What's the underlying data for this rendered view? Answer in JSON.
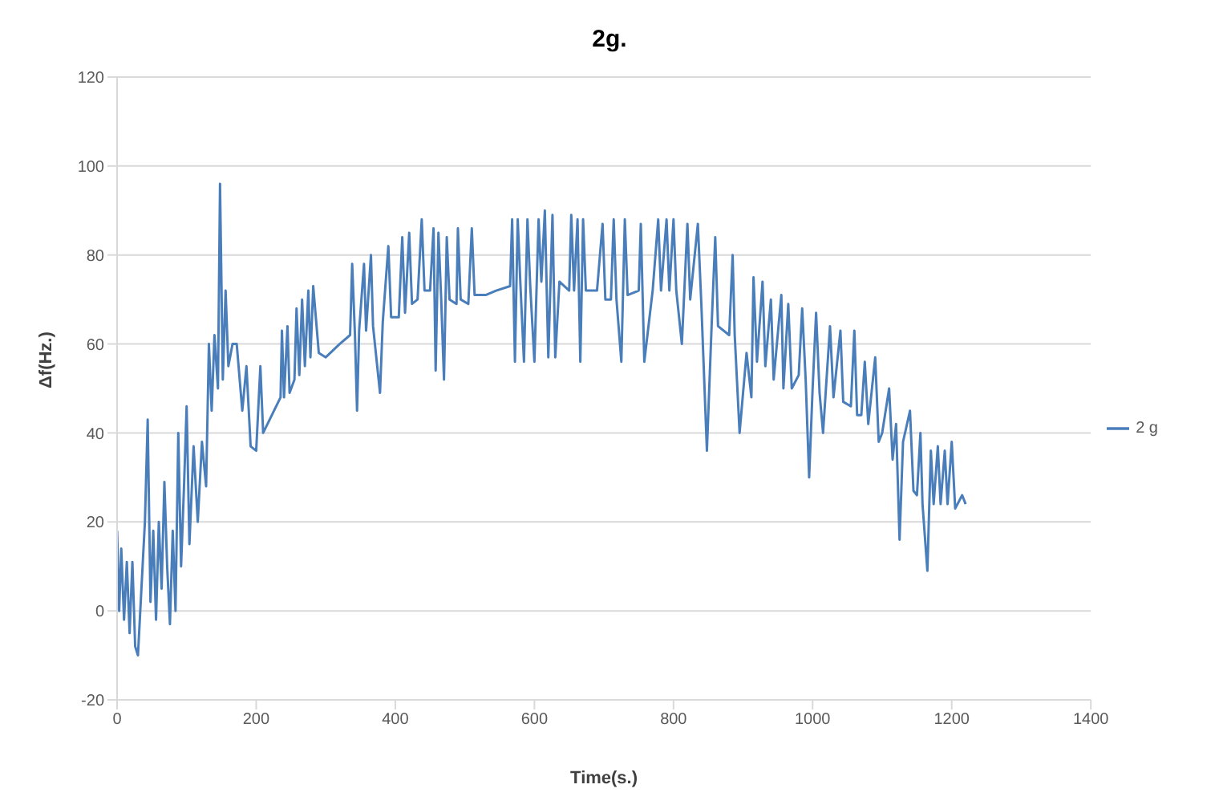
{
  "chart_data": {
    "type": "line",
    "title": "2g.",
    "xlabel": "Time(s.)",
    "ylabel": "Δf(Hz.)",
    "xlim": [
      0,
      1400
    ],
    "xticks": [
      0,
      200,
      400,
      600,
      800,
      1000,
      1200,
      1400
    ],
    "ylim": [
      -20,
      120
    ],
    "yticks": [
      -20,
      0,
      20,
      40,
      60,
      80,
      100,
      120
    ],
    "grid": "y",
    "legend": "right",
    "marker": "none",
    "series": [
      {
        "name": "2 g",
        "color": "#4a7ebb",
        "x": [
          0,
          3,
          6,
          10,
          14,
          18,
          22,
          26,
          30,
          35,
          40,
          44,
          48,
          52,
          56,
          60,
          64,
          68,
          72,
          76,
          80,
          84,
          88,
          92,
          96,
          100,
          104,
          110,
          116,
          122,
          128,
          132,
          136,
          140,
          145,
          148,
          152,
          156,
          160,
          166,
          172,
          180,
          186,
          192,
          200,
          206,
          210,
          235,
          237,
          240,
          245,
          248,
          255,
          258,
          262,
          266,
          270,
          275,
          278,
          282,
          290,
          300,
          320,
          335,
          338,
          342,
          345,
          348,
          355,
          358,
          365,
          368,
          378,
          382,
          390,
          394,
          405,
          410,
          414,
          420,
          424,
          432,
          438,
          442,
          450,
          455,
          458,
          462,
          466,
          470,
          474,
          478,
          488,
          490,
          494,
          505,
          510,
          514,
          530,
          545,
          565,
          568,
          572,
          576,
          580,
          585,
          590,
          594,
          600,
          606,
          610,
          615,
          620,
          626,
          630,
          636,
          650,
          653,
          657,
          662,
          666,
          670,
          674,
          690,
          698,
          702,
          710,
          714,
          718,
          725,
          730,
          734,
          750,
          753,
          758,
          770,
          778,
          782,
          790,
          794,
          800,
          804,
          812,
          820,
          824,
          835,
          840,
          848,
          855,
          860,
          864,
          880,
          885,
          888,
          895,
          905,
          912,
          915,
          920,
          928,
          932,
          940,
          944,
          955,
          958,
          965,
          970,
          980,
          985,
          990,
          995,
          1000,
          1005,
          1010,
          1015,
          1025,
          1030,
          1040,
          1044,
          1055,
          1060,
          1064,
          1070,
          1075,
          1080,
          1090,
          1095,
          1100,
          1110,
          1115,
          1120,
          1125,
          1130,
          1140,
          1145,
          1150,
          1155,
          1158,
          1165,
          1170,
          1174,
          1180,
          1184,
          1190,
          1194,
          1200,
          1205,
          1215,
          1220
        ],
        "values": [
          18,
          0,
          14,
          -2,
          11,
          -5,
          11,
          -8,
          -10,
          5,
          20,
          43,
          2,
          18,
          -2,
          20,
          5,
          29,
          10,
          -3,
          18,
          0,
          40,
          10,
          27,
          46,
          15,
          37,
          20,
          38,
          28,
          60,
          45,
          62,
          50,
          96,
          52,
          72,
          55,
          60,
          60,
          45,
          55,
          37,
          36,
          55,
          40,
          48,
          63,
          48,
          64,
          49,
          52,
          68,
          53,
          70,
          55,
          72,
          57,
          73,
          58,
          57,
          60,
          62,
          78,
          62,
          45,
          63,
          78,
          63,
          80,
          64,
          49,
          65,
          82,
          66,
          66,
          84,
          67,
          85,
          69,
          70,
          88,
          72,
          72,
          86,
          54,
          85,
          70,
          52,
          84,
          70,
          69,
          86,
          70,
          69,
          86,
          71,
          71,
          72,
          73,
          88,
          56,
          88,
          73,
          56,
          88,
          73,
          56,
          88,
          74,
          90,
          57,
          89,
          57,
          74,
          72,
          89,
          72,
          88,
          56,
          88,
          72,
          72,
          87,
          70,
          70,
          88,
          70,
          56,
          88,
          71,
          72,
          87,
          56,
          72,
          88,
          72,
          88,
          72,
          88,
          72,
          60,
          87,
          70,
          87,
          69,
          36,
          65,
          84,
          64,
          62,
          80,
          62,
          40,
          58,
          48,
          75,
          56,
          74,
          55,
          70,
          52,
          71,
          50,
          69,
          50,
          53,
          68,
          52,
          30,
          50,
          67,
          49,
          40,
          64,
          48,
          63,
          47,
          46,
          63,
          44,
          44,
          56,
          42,
          57,
          38,
          40,
          50,
          34,
          42,
          16,
          38,
          45,
          27,
          26,
          40,
          24,
          9,
          36,
          24,
          37,
          24,
          36,
          24,
          38,
          23,
          26,
          24
        ]
      }
    ]
  }
}
